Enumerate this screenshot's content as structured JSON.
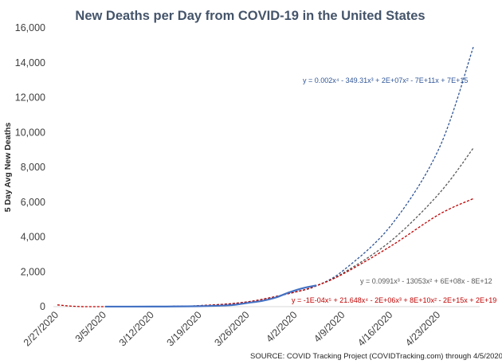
{
  "chart_data": {
    "type": "line",
    "title": "New Deaths per Day from COVID-19 in the United States",
    "ylabel": "5 Day Avg New Deaths",
    "xlabel": "",
    "ylim": [
      0,
      16000
    ],
    "y_ticks": [
      0,
      2000,
      4000,
      6000,
      8000,
      10000,
      12000,
      14000,
      16000
    ],
    "y_tick_labels": [
      "0",
      "2,000",
      "4,000",
      "6,000",
      "8,000",
      "10,000",
      "12,000",
      "14,000",
      "16,000"
    ],
    "x_range": [
      "2/27/2020",
      "4/28/2020"
    ],
    "x_ticks": [
      "2/27/2020",
      "3/5/2020",
      "3/12/2020",
      "3/19/2020",
      "3/26/2020",
      "4/2/2020",
      "4/9/2020",
      "4/16/2020",
      "4/23/2020"
    ],
    "grid": false,
    "series": [
      {
        "kind": "actual",
        "color": "#4472c4",
        "points": [
          [
            "3/5/2020",
            2
          ],
          [
            "3/12/2020",
            6
          ],
          [
            "3/15/2020",
            10
          ],
          [
            "3/19/2020",
            30
          ],
          [
            "3/22/2020",
            60
          ],
          [
            "3/24/2020",
            110
          ],
          [
            "3/26/2020",
            220
          ],
          [
            "3/28/2020",
            330
          ],
          [
            "3/30/2020",
            520
          ],
          [
            "4/1/2020",
            820
          ],
          [
            "4/3/2020",
            1060
          ],
          [
            "4/5/2020",
            1220
          ]
        ]
      },
      {
        "kind": "trend",
        "label": "y = 0.002x⁴ - 349.31x³ + 2E+07x² - 7E+11x + 7E+15",
        "color": "#2f5597",
        "points": [
          [
            "3/5/2020",
            0
          ],
          [
            "3/12/2020",
            10
          ],
          [
            "3/19/2020",
            60
          ],
          [
            "3/26/2020",
            280
          ],
          [
            "4/2/2020",
            850
          ],
          [
            "4/5/2020",
            1200
          ],
          [
            "4/9/2020",
            2100
          ],
          [
            "4/16/2020",
            4700
          ],
          [
            "4/23/2020",
            9100
          ],
          [
            "4/28/2020",
            14900
          ]
        ]
      },
      {
        "kind": "trend",
        "label": "y = 0.0991x³ - 13053x² + 6E+08x - 8E+12",
        "color": "#595959",
        "points": [
          [
            "3/5/2020",
            0
          ],
          [
            "3/12/2020",
            10
          ],
          [
            "3/19/2020",
            60
          ],
          [
            "3/26/2020",
            280
          ],
          [
            "4/2/2020",
            850
          ],
          [
            "4/5/2020",
            1200
          ],
          [
            "4/9/2020",
            1950
          ],
          [
            "4/16/2020",
            3800
          ],
          [
            "4/23/2020",
            6500
          ],
          [
            "4/28/2020",
            9100
          ]
        ]
      },
      {
        "kind": "trend",
        "label": "y = -1E-04x⁵ + 21.648x⁴ - 2E+06x³ + 8E+10x² - 2E+15x + 2E+19",
        "color": "#c00000",
        "points": [
          [
            "2/27/2020",
            100
          ],
          [
            "3/1/2020",
            10
          ],
          [
            "3/5/2020",
            0
          ],
          [
            "3/12/2020",
            10
          ],
          [
            "3/19/2020",
            60
          ],
          [
            "3/26/2020",
            280
          ],
          [
            "4/2/2020",
            850
          ],
          [
            "4/5/2020",
            1200
          ],
          [
            "4/9/2020",
            1900
          ],
          [
            "4/16/2020",
            3500
          ],
          [
            "4/23/2020",
            5300
          ],
          [
            "4/28/2020",
            6200
          ]
        ]
      }
    ],
    "source": "SOURCE: COVID Tracking Project (COVIDTracking.com) through 4/5/2020"
  }
}
